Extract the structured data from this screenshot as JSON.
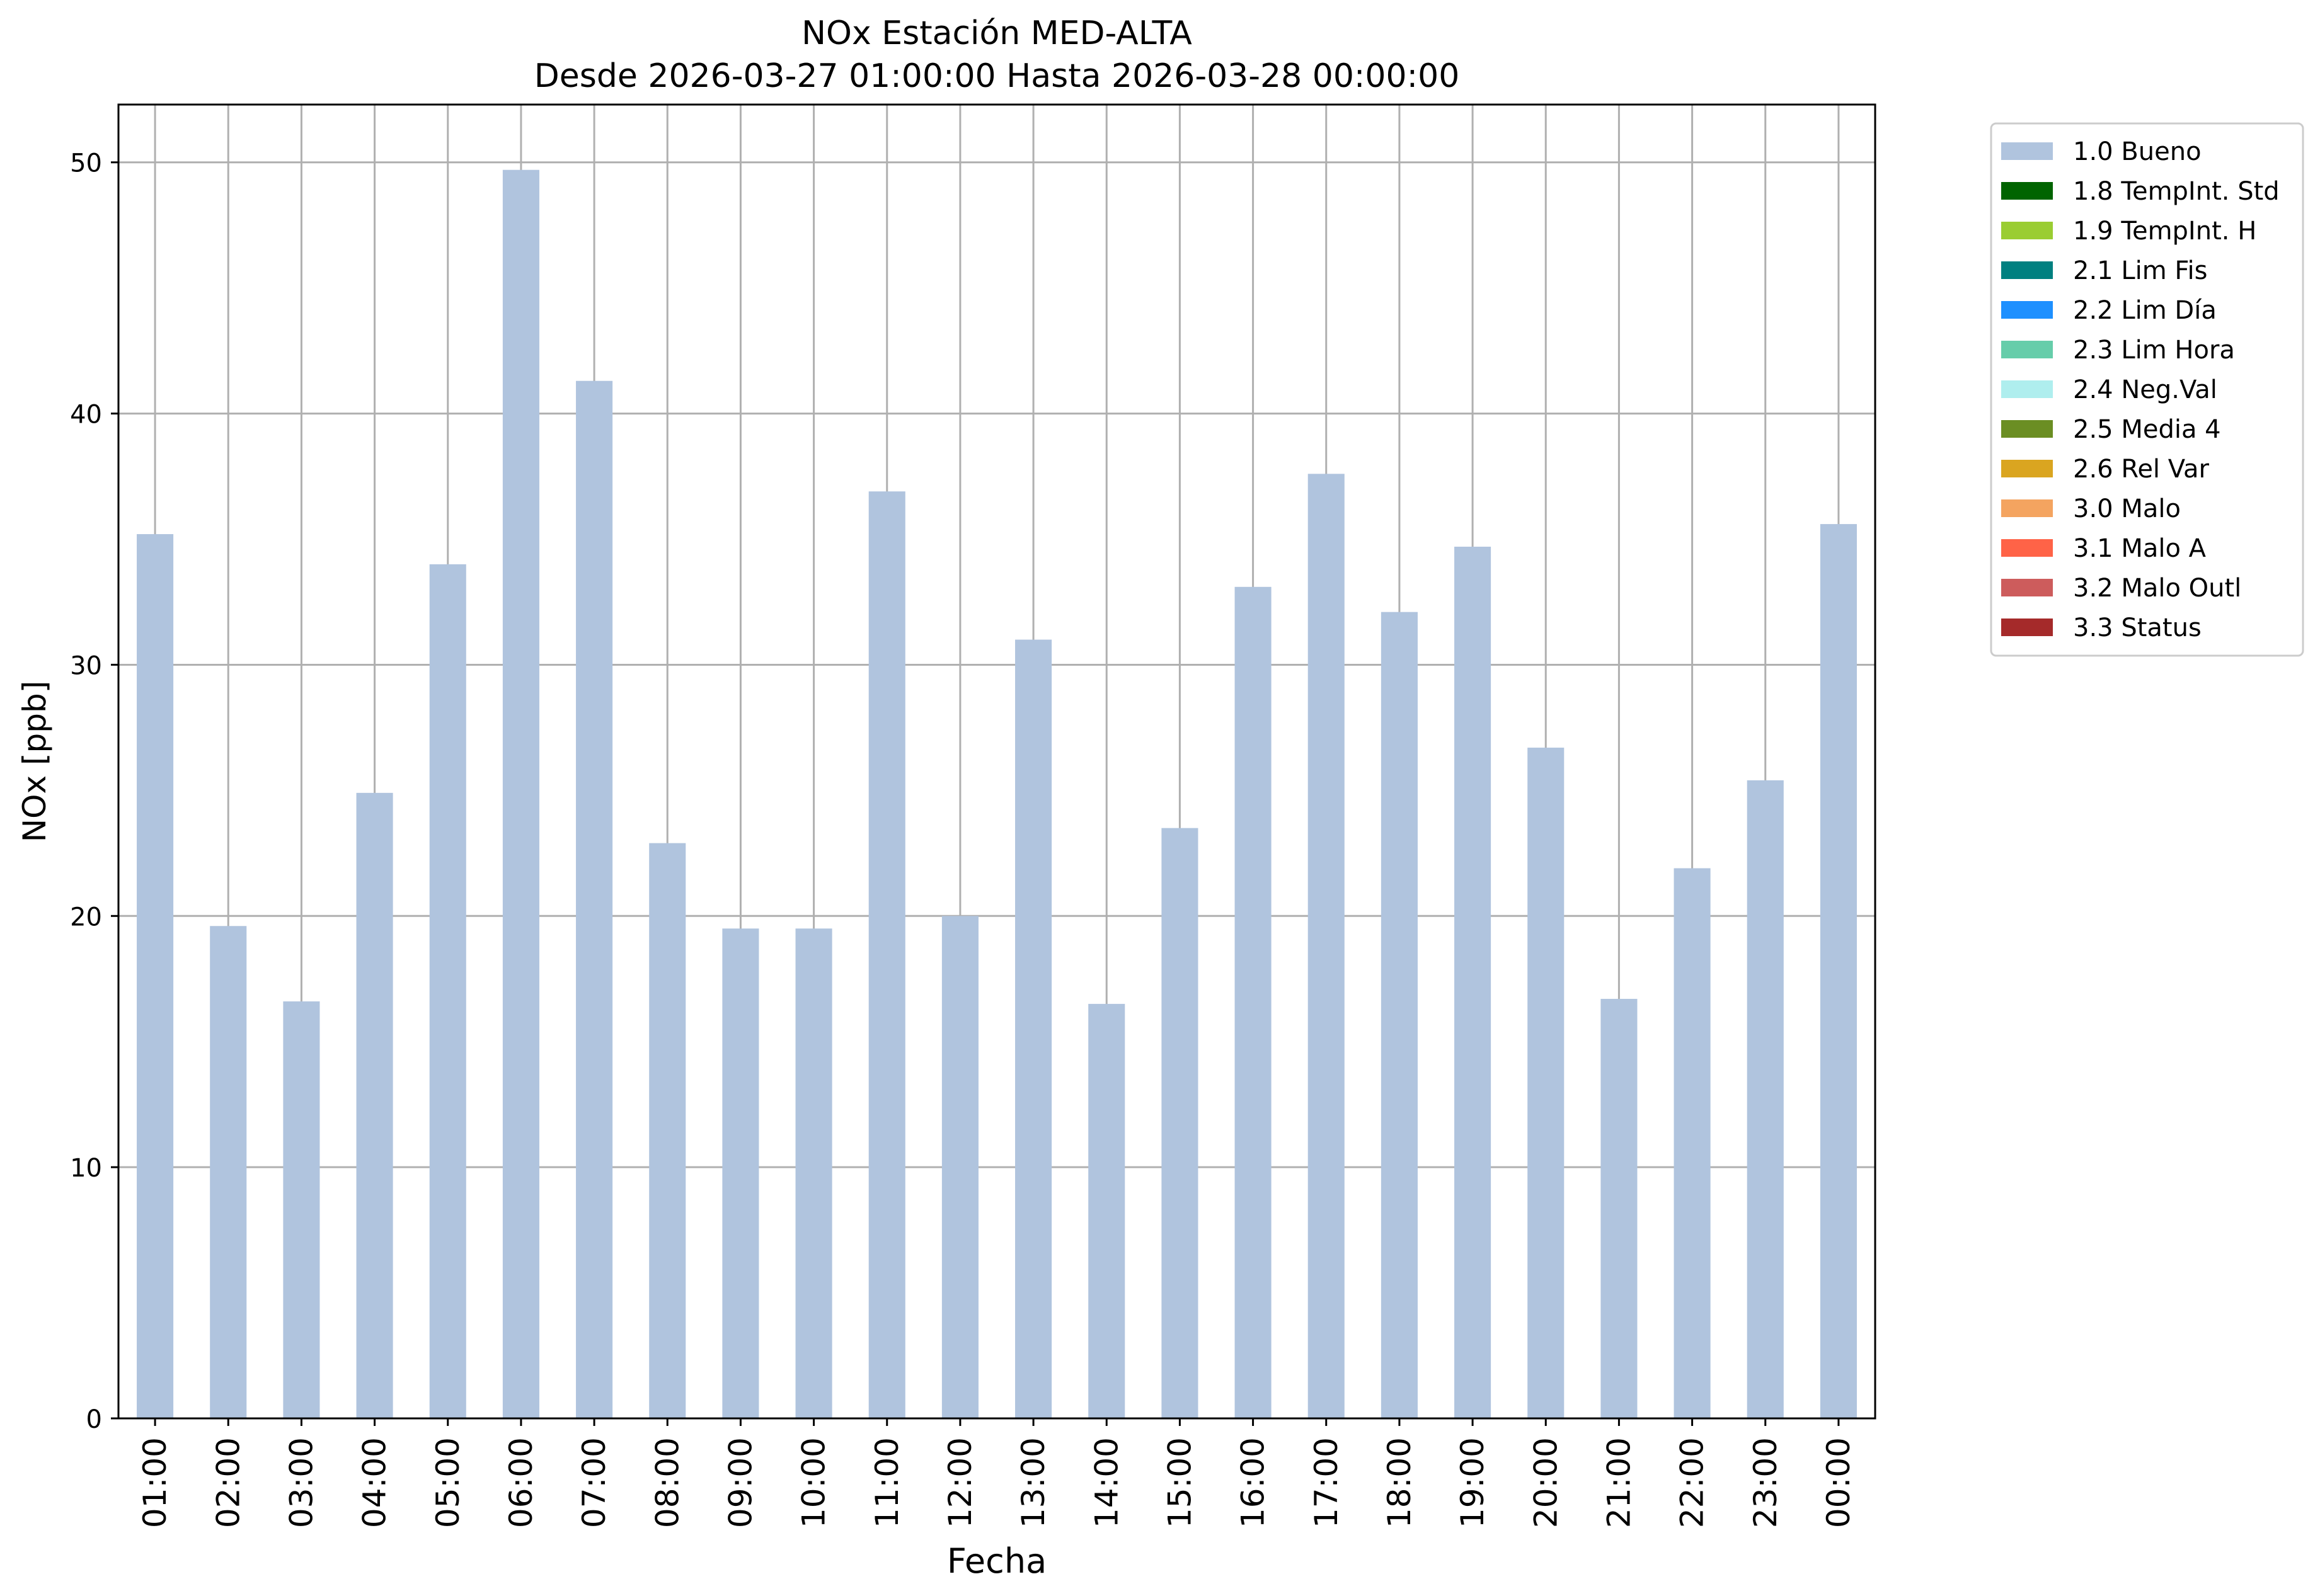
{
  "chart_data": {
    "type": "bar",
    "title": "NOx Estación MED-ALTA",
    "subtitle": "Desde 2026-03-27 01:00:00 Hasta 2026-03-28 00:00:00",
    "xlabel": "Fecha",
    "ylabel": "NOx [ppb]",
    "ylim": [
      0,
      52.3
    ],
    "yticks": [
      0,
      10,
      20,
      30,
      40,
      50
    ],
    "grid": true,
    "legend_position": "outside-top-right",
    "categories": [
      "01:00",
      "02:00",
      "03:00",
      "04:00",
      "05:00",
      "06:00",
      "07:00",
      "08:00",
      "09:00",
      "10:00",
      "11:00",
      "12:00",
      "13:00",
      "14:00",
      "15:00",
      "16:00",
      "17:00",
      "18:00",
      "19:00",
      "20:00",
      "21:00",
      "22:00",
      "23:00",
      "00:00"
    ],
    "series": [
      {
        "name": "1.0 Bueno",
        "color": "#b0c4de",
        "values": [
          35.2,
          19.6,
          16.6,
          24.9,
          34.0,
          49.7,
          41.3,
          22.9,
          19.5,
          19.5,
          36.9,
          20.0,
          31.0,
          16.5,
          23.5,
          33.1,
          37.6,
          32.1,
          34.7,
          26.7,
          16.7,
          21.9,
          25.4,
          35.6
        ]
      }
    ],
    "legend": [
      {
        "label": "1.0 Bueno",
        "color": "#b0c4de"
      },
      {
        "label": "1.8 TempInt. Std",
        "color": "#006400"
      },
      {
        "label": "1.9 TempInt. H",
        "color": "#9acd32"
      },
      {
        "label": "2.1 Lim Fis",
        "color": "#008080"
      },
      {
        "label": "2.2 Lim Día",
        "color": "#1e90ff"
      },
      {
        "label": "2.3 Lim Hora",
        "color": "#66cdaa"
      },
      {
        "label": "2.4 Neg.Val",
        "color": "#afeeee"
      },
      {
        "label": "2.5 Media 4",
        "color": "#6b8e23"
      },
      {
        "label": "2.6 Rel Var",
        "color": "#daa520"
      },
      {
        "label": "3.0 Malo",
        "color": "#f4a460"
      },
      {
        "label": "3.1 Malo A",
        "color": "#ff6347"
      },
      {
        "label": "3.2 Malo Outl",
        "color": "#cd5c5c"
      },
      {
        "label": "3.3 Status",
        "color": "#a52a2a"
      }
    ]
  }
}
